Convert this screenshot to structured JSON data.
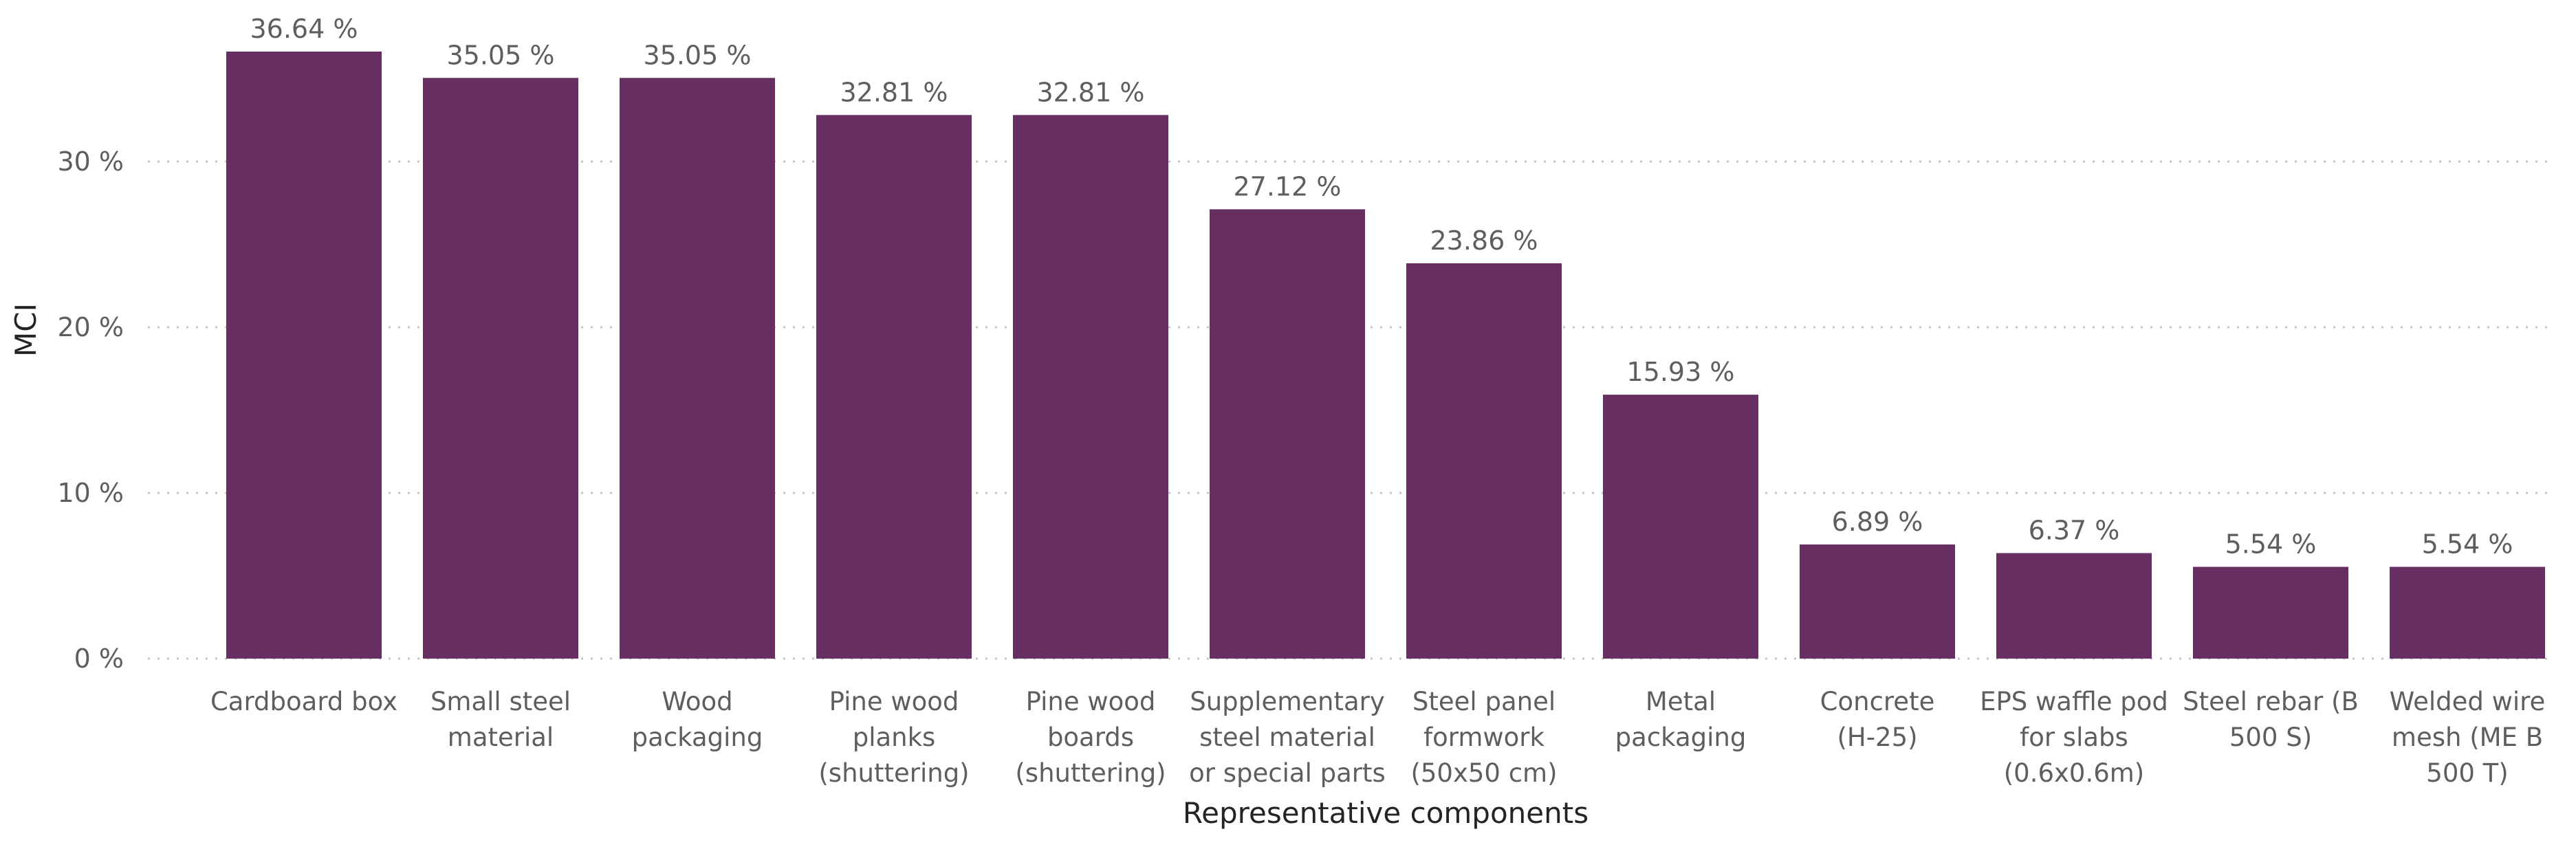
{
  "chart_data": {
    "type": "bar",
    "title": "",
    "xlabel": "Representative components",
    "ylabel": "MCI",
    "ylim": [
      0,
      36.64
    ],
    "yticks": [
      0,
      10,
      20,
      30
    ],
    "ytick_labels": [
      "0 %",
      "10 %",
      "20 %",
      "30 %"
    ],
    "grid": true,
    "legend": "none",
    "bar_color": "#672e62",
    "categories": [
      "Cardboard box",
      "Small steel material",
      "Wood packaging",
      "Pine wood planks (shuttering)",
      "Pine wood boards (shuttering)",
      "Supplementary steel material or special parts",
      "Steel panel formwork (50x50 cm)",
      "Metal packaging",
      "Concrete (H-25)",
      "EPS waffle pod for slabs (0.6x0.6m)",
      "Steel rebar (B 500 S)",
      "Welded wire mesh (ME B 500 T)"
    ],
    "category_lines": [
      [
        "Cardboard box"
      ],
      [
        "Small steel",
        "material"
      ],
      [
        "Wood",
        "packaging"
      ],
      [
        "Pine wood",
        "planks",
        "(shuttering)"
      ],
      [
        "Pine wood",
        "boards",
        "(shuttering)"
      ],
      [
        "Supplementary",
        "steel material",
        "or special parts"
      ],
      [
        "Steel panel",
        "formwork",
        "(50x50 cm)"
      ],
      [
        "Metal",
        "packaging"
      ],
      [
        "Concrete",
        "(H-25)"
      ],
      [
        "EPS waffle pod",
        "for slabs",
        "(0.6x0.6m)"
      ],
      [
        "Steel rebar (B",
        "500 S)"
      ],
      [
        "Welded wire",
        "mesh (ME B",
        "500 T)"
      ]
    ],
    "values": [
      36.64,
      35.05,
      35.05,
      32.81,
      32.81,
      27.12,
      23.86,
      15.93,
      6.89,
      6.37,
      5.54,
      5.54
    ],
    "data_labels": [
      "36.64 %",
      "35.05 %",
      "35.05 %",
      "32.81 %",
      "32.81 %",
      "27.12 %",
      "23.86 %",
      "15.93 %",
      "6.89 %",
      "6.37 %",
      "5.54 %",
      "5.54 %"
    ]
  }
}
